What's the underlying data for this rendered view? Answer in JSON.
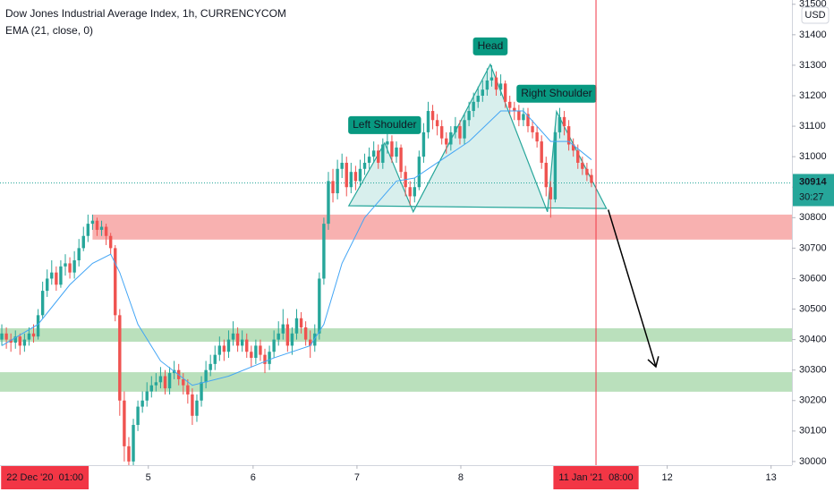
{
  "chart_data": {
    "type": "candlestick",
    "title": "Dow Jones Industrial Average Index, 1h, CURRENCYCOM",
    "subtitle": "EMA (21, close, 0)",
    "currency": "USD",
    "up_color": "#26a69a",
    "down_color": "#ef5350",
    "xlim": [
      -0.4,
      174.2
    ],
    "ylim": [
      29988,
      31514
    ],
    "yticks": [
      30000,
      30100,
      30200,
      30300,
      30400,
      30500,
      30600,
      30700,
      30800,
      30900,
      31000,
      31100,
      31200,
      31300,
      31400,
      31500
    ],
    "xticks": [
      {
        "value": 32.3,
        "label": "5"
      },
      {
        "value": 55.4,
        "label": "6"
      },
      {
        "value": 78.3,
        "label": "7"
      },
      {
        "value": 101.2,
        "label": "8"
      },
      {
        "value": 146.7,
        "label": "12"
      },
      {
        "value": 169.6,
        "label": "13"
      }
    ],
    "highlight_x": [
      {
        "value": 9.5,
        "label": "22 Dec '20  01:00"
      },
      {
        "value": 131,
        "label": "11 Jan '21  08:00"
      }
    ],
    "crosshair_x": 131,
    "crosshair_color": "#f23645",
    "last_price": 30914,
    "countdown": "30:27",
    "candles": [
      [
        30400,
        30450,
        30380,
        30420
      ],
      [
        30420,
        30440,
        30370,
        30400
      ],
      [
        30400,
        30420,
        30360,
        30390
      ],
      [
        30390,
        30430,
        30370,
        30410
      ],
      [
        30410,
        30420,
        30350,
        30380
      ],
      [
        30380,
        30420,
        30360,
        30400
      ],
      [
        30400,
        30440,
        30380,
        30420
      ],
      [
        30420,
        30450,
        30390,
        30410
      ],
      [
        30410,
        30500,
        30400,
        30480
      ],
      [
        30480,
        30590,
        30470,
        30560
      ],
      [
        30560,
        30630,
        30540,
        30600
      ],
      [
        30600,
        30660,
        30580,
        30620
      ],
      [
        30620,
        30640,
        30560,
        30580
      ],
      [
        30580,
        30660,
        30570,
        30640
      ],
      [
        30640,
        30680,
        30610,
        30650
      ],
      [
        30650,
        30670,
        30600,
        30620
      ],
      [
        30620,
        30690,
        30600,
        30660
      ],
      [
        30660,
        30730,
        30640,
        30700
      ],
      [
        30700,
        30770,
        30690,
        30740
      ],
      [
        30740,
        30810,
        30720,
        30780
      ],
      [
        30780,
        30810,
        30760,
        30790
      ],
      [
        30790,
        30800,
        30740,
        30760
      ],
      [
        30760,
        30790,
        30740,
        30770
      ],
      [
        30770,
        30780,
        30710,
        30740
      ],
      [
        30740,
        30750,
        30680,
        30700
      ],
      [
        30700,
        30710,
        30460,
        30480
      ],
      [
        30480,
        30500,
        30150,
        30200
      ],
      [
        30200,
        30230,
        30000,
        30050
      ],
      [
        30050,
        30080,
        29950,
        30000
      ],
      [
        30000,
        30140,
        29980,
        30120
      ],
      [
        30120,
        30200,
        30100,
        30180
      ],
      [
        30180,
        30230,
        30160,
        30200
      ],
      [
        30200,
        30260,
        30180,
        30230
      ],
      [
        30230,
        30280,
        30210,
        30250
      ],
      [
        30250,
        30290,
        30230,
        30260
      ],
      [
        30260,
        30310,
        30240,
        30280
      ],
      [
        30280,
        30300,
        30220,
        30240
      ],
      [
        30240,
        30310,
        30220,
        30290
      ],
      [
        30290,
        30330,
        30270,
        30300
      ],
      [
        30300,
        30320,
        30250,
        30270
      ],
      [
        30270,
        30290,
        30220,
        30250
      ],
      [
        30250,
        30270,
        30190,
        30220
      ],
      [
        30220,
        30240,
        30120,
        30150
      ],
      [
        30150,
        30220,
        30130,
        30200
      ],
      [
        30200,
        30280,
        30180,
        30260
      ],
      [
        30260,
        30330,
        30240,
        30300
      ],
      [
        30300,
        30350,
        30280,
        30320
      ],
      [
        30320,
        30380,
        30300,
        30350
      ],
      [
        30350,
        30410,
        30330,
        30380
      ],
      [
        30380,
        30400,
        30330,
        30360
      ],
      [
        30360,
        30430,
        30340,
        30400
      ],
      [
        30400,
        30460,
        30380,
        30420
      ],
      [
        30420,
        30440,
        30360,
        30380
      ],
      [
        30380,
        30430,
        30360,
        30400
      ],
      [
        30400,
        30420,
        30340,
        30360
      ],
      [
        30360,
        30380,
        30310,
        30340
      ],
      [
        30340,
        30400,
        30320,
        30380
      ],
      [
        30380,
        30400,
        30330,
        30350
      ],
      [
        30350,
        30370,
        30290,
        30320
      ],
      [
        30320,
        30380,
        30300,
        30360
      ],
      [
        30360,
        30430,
        30340,
        30400
      ],
      [
        30400,
        30460,
        30380,
        30420
      ],
      [
        30420,
        30500,
        30400,
        30450
      ],
      [
        30450,
        30470,
        30360,
        30380
      ],
      [
        30380,
        30440,
        30350,
        30420
      ],
      [
        30420,
        30500,
        30400,
        30470
      ],
      [
        30470,
        30490,
        30420,
        30440
      ],
      [
        30440,
        30460,
        30380,
        30400
      ],
      [
        30400,
        30430,
        30340,
        30380
      ],
      [
        30380,
        30450,
        30360,
        30420
      ],
      [
        30420,
        30620,
        30400,
        30600
      ],
      [
        30600,
        30800,
        30580,
        30780
      ],
      [
        30780,
        30950,
        30760,
        30920
      ],
      [
        30920,
        30960,
        30850,
        30880
      ],
      [
        30880,
        30990,
        30860,
        30960
      ],
      [
        30960,
        31010,
        30930,
        30980
      ],
      [
        30980,
        31000,
        30870,
        30900
      ],
      [
        30900,
        30980,
        30880,
        30950
      ],
      [
        30950,
        30970,
        30890,
        30920
      ],
      [
        30920,
        30990,
        30900,
        30960
      ],
      [
        30960,
        31010,
        30940,
        30980
      ],
      [
        30980,
        31030,
        30960,
        31000
      ],
      [
        31000,
        31050,
        30980,
        31020
      ],
      [
        31020,
        31040,
        30960,
        30980
      ],
      [
        30980,
        31060,
        30960,
        31040
      ],
      [
        31040,
        31080,
        31010,
        31050
      ],
      [
        31050,
        31070,
        30980,
        31000
      ],
      [
        31000,
        31050,
        30980,
        31030
      ],
      [
        31030,
        31040,
        30930,
        30950
      ],
      [
        30950,
        30970,
        30870,
        30900
      ],
      [
        30900,
        30920,
        30840,
        30870
      ],
      [
        30870,
        30930,
        30850,
        30900
      ],
      [
        30900,
        31020,
        30890,
        31000
      ],
      [
        31000,
        31110,
        30980,
        31080
      ],
      [
        31080,
        31180,
        31060,
        31150
      ],
      [
        31150,
        31170,
        31090,
        31120
      ],
      [
        31120,
        31140,
        31070,
        31100
      ],
      [
        31100,
        31120,
        31040,
        31060
      ],
      [
        31060,
        31080,
        31010,
        31040
      ],
      [
        31040,
        31100,
        31020,
        31080
      ],
      [
        31080,
        31130,
        31060,
        31100
      ],
      [
        31100,
        31120,
        31040,
        31060
      ],
      [
        31060,
        31140,
        31040,
        31120
      ],
      [
        31120,
        31180,
        31100,
        31150
      ],
      [
        31150,
        31210,
        31130,
        31180
      ],
      [
        31180,
        31230,
        31160,
        31200
      ],
      [
        31200,
        31250,
        31180,
        31220
      ],
      [
        31220,
        31290,
        31200,
        31250
      ],
      [
        31250,
        31300,
        31230,
        31260
      ],
      [
        31260,
        31280,
        31200,
        31220
      ],
      [
        31220,
        31270,
        31200,
        31240
      ],
      [
        31240,
        31250,
        31160,
        31180
      ],
      [
        31180,
        31200,
        31140,
        31160
      ],
      [
        31160,
        31180,
        31120,
        31150
      ],
      [
        31150,
        31170,
        31100,
        31120
      ],
      [
        31120,
        31160,
        31100,
        31140
      ],
      [
        31140,
        31160,
        31080,
        31100
      ],
      [
        31100,
        31120,
        31060,
        31080
      ],
      [
        31080,
        31100,
        31030,
        31050
      ],
      [
        31050,
        31070,
        30960,
        30980
      ],
      [
        30980,
        31000,
        30870,
        30900
      ],
      [
        30900,
        30920,
        30800,
        30860
      ],
      [
        30860,
        31100,
        30850,
        31080
      ],
      [
        31080,
        31160,
        31060,
        31130
      ],
      [
        31130,
        31150,
        31070,
        31100
      ],
      [
        31100,
        31120,
        31020,
        31040
      ],
      [
        31040,
        31060,
        31000,
        31020
      ],
      [
        31020,
        31040,
        30960,
        30980
      ],
      [
        30980,
        31000,
        30940,
        30960
      ],
      [
        30960,
        30980,
        30920,
        30940
      ],
      [
        30940,
        30960,
        30900,
        30914
      ]
    ],
    "ema": {
      "name": "EMA (21, close, 0)",
      "color": "#42a5f5",
      "x": [
        0,
        8,
        15,
        20,
        24,
        26,
        30,
        35,
        42,
        50,
        60,
        68,
        71,
        75,
        80,
        87,
        91,
        96,
        103,
        110,
        115,
        121,
        125,
        130
      ],
      "values": [
        30380,
        30450,
        30580,
        30650,
        30680,
        30620,
        30450,
        30330,
        30250,
        30280,
        30340,
        30380,
        30450,
        30650,
        30800,
        30920,
        30930,
        30980,
        31050,
        31150,
        31150,
        31050,
        31050,
        30990
      ]
    },
    "pattern": {
      "color": "#26a69a",
      "x": [
        76.5,
        84.4,
        90.7,
        107.7,
        120.3,
        122.3,
        133.3
      ],
      "values": [
        30839,
        31045,
        30819,
        31303,
        30819,
        31148,
        30830
      ],
      "labels": [
        "Left Shoulder",
        "Head",
        "Right Shoulder"
      ]
    },
    "zones": [
      {
        "color": "#ef5350",
        "start": 20,
        "low": 30728,
        "high": 30810
      },
      {
        "color": "#66bb6a",
        "start": -0.4,
        "low": 30393,
        "high": 30437
      },
      {
        "color": "#66bb6a",
        "start": -0.4,
        "low": 30229,
        "high": 30293
      }
    ],
    "projection": {
      "x": [
        133.7,
        144.2
      ],
      "values": [
        30826,
        30311
      ]
    }
  }
}
